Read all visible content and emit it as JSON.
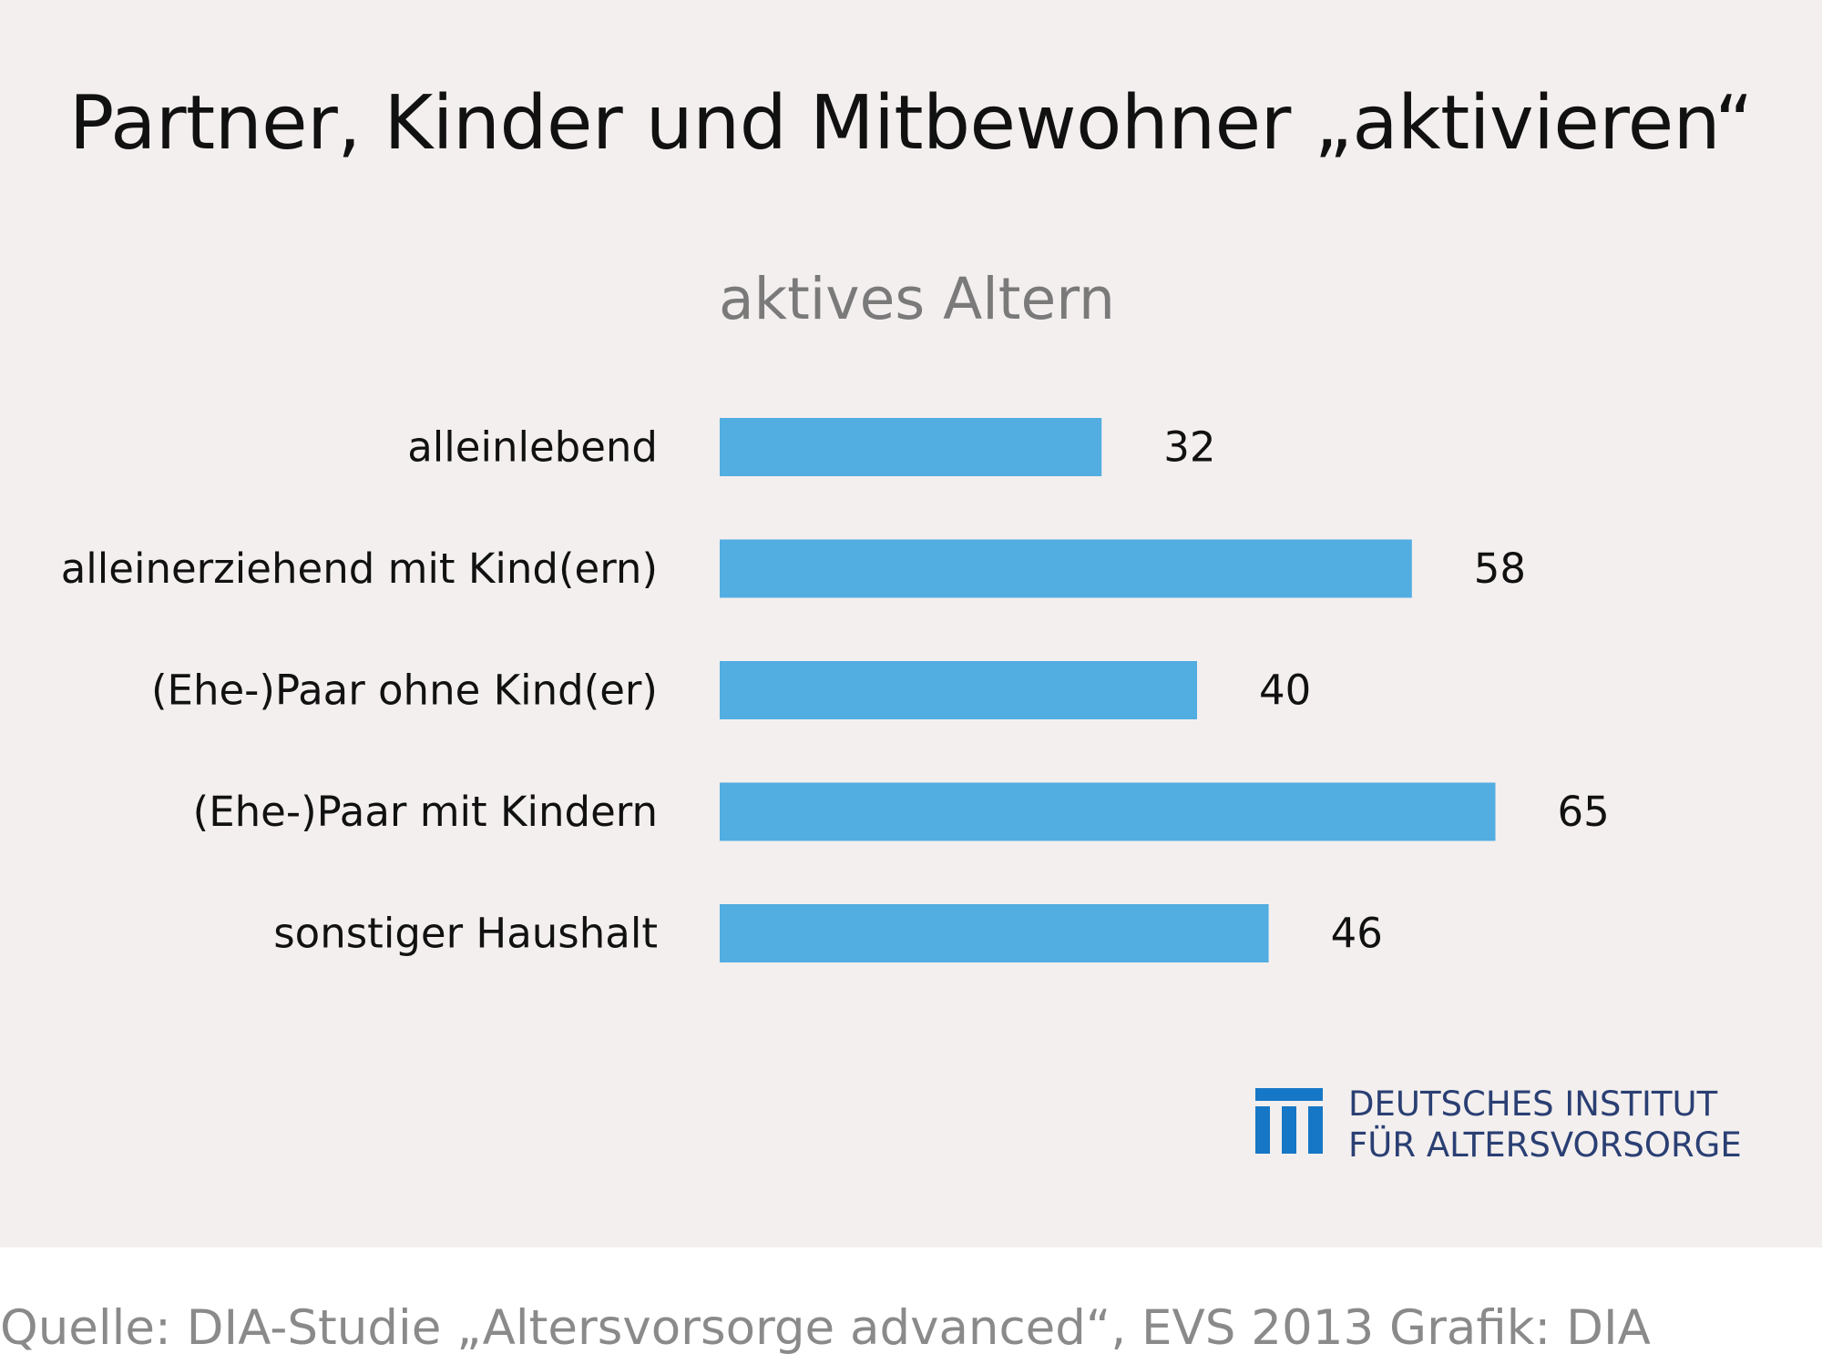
{
  "title": "Partner, Kinder und Mitbewohner „aktivieren“",
  "chart_data": {
    "type": "bar",
    "orientation": "horizontal",
    "subtitle": "aktives Altern",
    "categories": [
      "alleinlebend",
      "alleinerziehend mit Kind(ern)",
      "(Ehe-)Paar ohne Kind(er)",
      "(Ehe-)Paar mit Kindern",
      "sonstiger Haushalt"
    ],
    "values": [
      32,
      58,
      40,
      65,
      46
    ],
    "value_labels": [
      "32",
      "58",
      "40",
      "65",
      "46"
    ],
    "bar_color": "#52ade1",
    "xlim": [
      0,
      65
    ],
    "grid": false
  },
  "logo": {
    "line1": "DEUTSCHES INSTITUT",
    "line2": "FÜR ALTERSVORSORGE",
    "color": "#1677c6"
  },
  "footer": "Quelle: DIA-Studie „Altersvorsorge advanced“, EVS 2013  Grafik: DIA"
}
